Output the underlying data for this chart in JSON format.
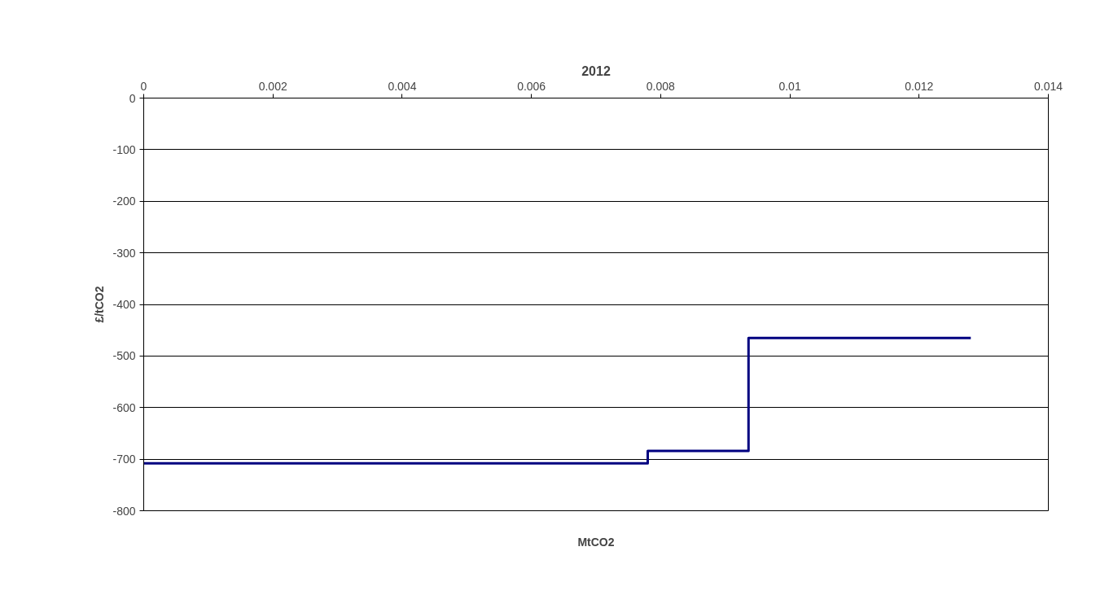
{
  "chart_data": {
    "type": "step",
    "title": "2012",
    "xlabel": "MtCO2",
    "ylabel": "£/tCO2",
    "x": [
      0,
      0.0078,
      0.00936,
      0.0128
    ],
    "series": [
      {
        "color": "#000080",
        "values": [
          -708,
          -684,
          -465,
          -465
        ]
      }
    ],
    "xlim": [
      0,
      0.014
    ],
    "xticks": [
      0,
      0.002,
      0.004,
      0.006,
      0.008,
      0.01,
      0.012,
      0.014
    ],
    "ylim": [
      -800,
      0
    ],
    "yticks": [
      0,
      -100,
      -200,
      -300,
      -400,
      -500,
      -600,
      -700,
      -800
    ],
    "grid": "y",
    "marker": "none",
    "line_style": "solid"
  }
}
